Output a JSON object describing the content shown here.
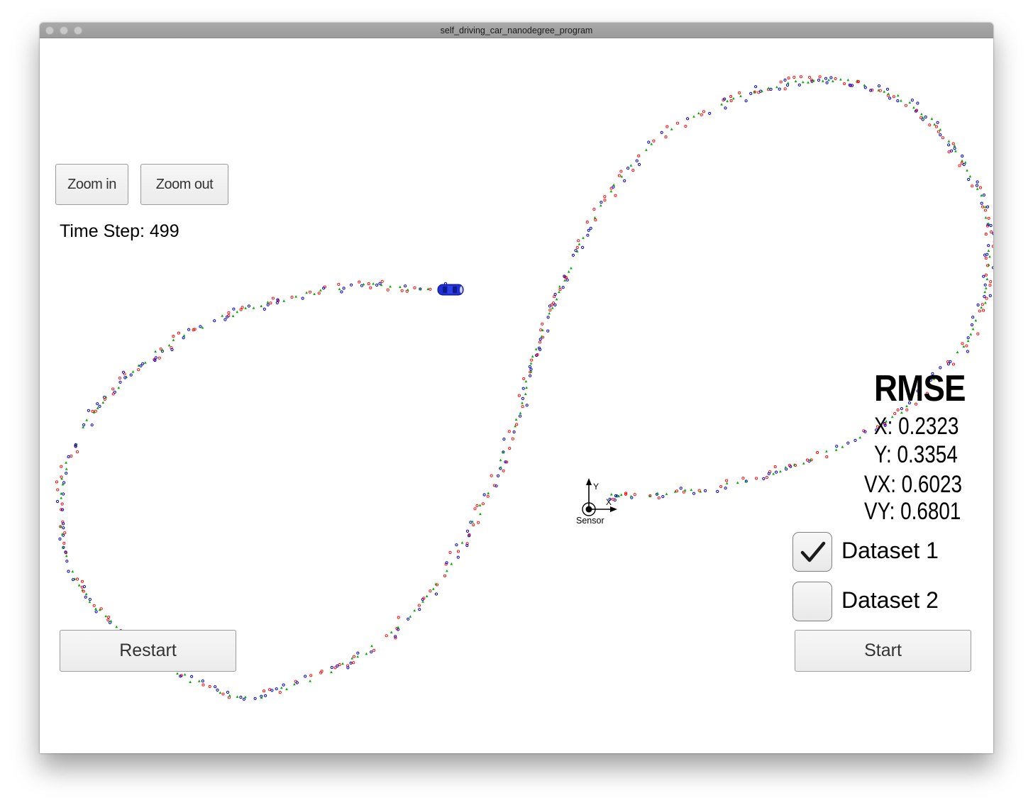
{
  "window": {
    "title": "self_driving_car_nanodegree_program"
  },
  "controls": {
    "zoom_in": "Zoom in",
    "zoom_out": "Zoom out",
    "restart": "Restart",
    "start": "Start"
  },
  "time_step": {
    "label": "Time Step:",
    "value": "499",
    "text": "Time Step: 499"
  },
  "rmse": {
    "title": "RMSE",
    "x": "X: 0.2323",
    "y": "Y: 0.3354",
    "vx": "VX: 0.6023",
    "vy": "VY: 0.6801"
  },
  "datasets": [
    {
      "label": "Dataset 1",
      "checked": true
    },
    {
      "label": "Dataset 2",
      "checked": false
    }
  ],
  "sensor": {
    "label": "Sensor",
    "x_axis": "X",
    "y_axis": "Y"
  },
  "colors": {
    "lidar_marker": "#ff0000",
    "radar_marker": "#0000cc",
    "estimate_marker": "#00aa00",
    "car": "#1f2fd6"
  },
  "icons": {
    "car": "car-icon",
    "check": "check-icon",
    "sensor": "sensor-icon"
  }
}
